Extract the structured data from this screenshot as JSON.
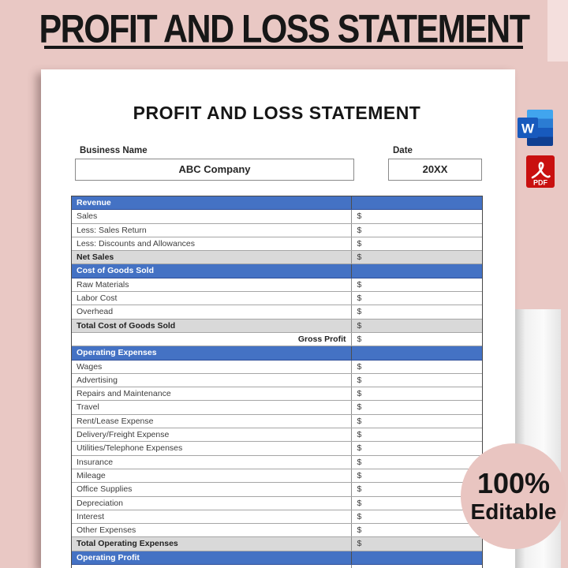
{
  "banner": {
    "title": "PROFIT AND LOSS STATEMENT"
  },
  "badge": {
    "percent": "100%",
    "word": "Editable"
  },
  "file_icons": {
    "word_letter": "W",
    "pdf_label": "PDF"
  },
  "document": {
    "title": "PROFIT AND LOSS STATEMENT",
    "business_name": {
      "label": "Business Name",
      "value": "ABC Company"
    },
    "date": {
      "label": "Date",
      "value": "20XX"
    },
    "currency_symbol": "$",
    "table": {
      "rows": [
        {
          "type": "section",
          "label": "Revenue",
          "value": ""
        },
        {
          "type": "item",
          "label": "Sales",
          "value": "$"
        },
        {
          "type": "item",
          "label": "Less: Sales Return",
          "value": "$"
        },
        {
          "type": "item",
          "label": "Less: Discounts and Allowances",
          "value": "$"
        },
        {
          "type": "total",
          "label": "Net Sales",
          "value": "$"
        },
        {
          "type": "section",
          "label": "Cost of Goods Sold",
          "value": ""
        },
        {
          "type": "item",
          "label": "Raw Materials",
          "value": "$"
        },
        {
          "type": "item",
          "label": "Labor Cost",
          "value": "$"
        },
        {
          "type": "item",
          "label": "Overhead",
          "value": "$"
        },
        {
          "type": "total",
          "label": "Total Cost of Goods Sold",
          "value": "$"
        },
        {
          "type": "gross",
          "label": "Gross Profit",
          "value": "$"
        },
        {
          "type": "section",
          "label": "Operating Expenses",
          "value": ""
        },
        {
          "type": "item",
          "label": "Wages",
          "value": "$"
        },
        {
          "type": "item",
          "label": "Advertising",
          "value": "$"
        },
        {
          "type": "item",
          "label": "Repairs and Maintenance",
          "value": "$"
        },
        {
          "type": "item",
          "label": "Travel",
          "value": "$"
        },
        {
          "type": "item",
          "label": "Rent/Lease Expense",
          "value": "$"
        },
        {
          "type": "item",
          "label": "Delivery/Freight Expense",
          "value": "$"
        },
        {
          "type": "item",
          "label": "Utilities/Telephone Expenses",
          "value": "$"
        },
        {
          "type": "item",
          "label": "Insurance",
          "value": "$"
        },
        {
          "type": "item",
          "label": "Mileage",
          "value": "$"
        },
        {
          "type": "item",
          "label": "Office Supplies",
          "value": "$"
        },
        {
          "type": "item",
          "label": "Depreciation",
          "value": "$"
        },
        {
          "type": "item",
          "label": "Interest",
          "value": "$"
        },
        {
          "type": "item",
          "label": "Other Expenses",
          "value": "$"
        },
        {
          "type": "total",
          "label": "Total Operating Expenses",
          "value": "$"
        },
        {
          "type": "section",
          "label": "Operating Profit",
          "value": ""
        },
        {
          "type": "item",
          "label": "",
          "value": ""
        }
      ]
    }
  },
  "colors": {
    "background_pink": "#e9c8c4",
    "corner_pink": "#f4dfdd",
    "header_blue": "#4472c4",
    "total_row_gray": "#d9d9d9",
    "badge_pink": "#e9c5c1",
    "word_icon_blue": "#185abd",
    "pdf_icon_red": "#c9100f",
    "title_black": "#171717"
  }
}
